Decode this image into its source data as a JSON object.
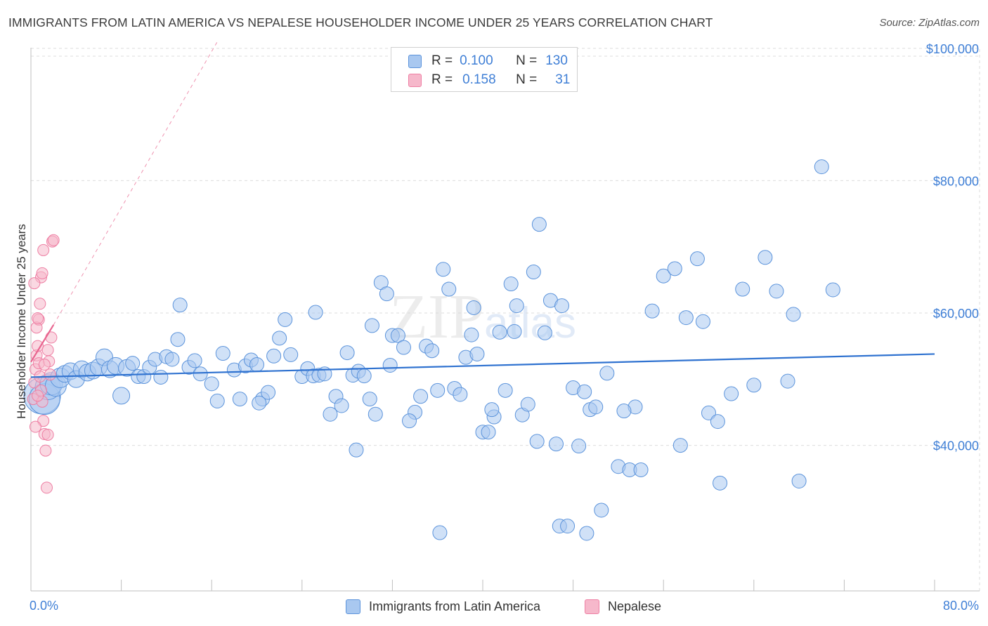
{
  "header": {
    "title": "IMMIGRANTS FROM LATIN AMERICA VS NEPALESE HOUSEHOLDER INCOME UNDER 25 YEARS CORRELATION CHART",
    "source": "Source: ZipAtlas.com"
  },
  "watermark": {
    "zip": "ZIP",
    "atlas": "atlas"
  },
  "legend": {
    "rows": [
      {
        "r_label": "R =",
        "r_value": "0.100",
        "n_label": "N =",
        "n_value": "130",
        "color": "#a9c8f0"
      },
      {
        "r_label": "R =",
        "r_value": "0.158",
        "n_label": "N =",
        "n_value": "31",
        "color": "#f6b8cb"
      }
    ]
  },
  "bottom_legend": {
    "series1": "Immigrants from Latin America",
    "series2": "Nepalese"
  },
  "chart_data": {
    "type": "scatter",
    "title": "IMMIGRANTS FROM LATIN AMERICA VS NEPALESE HOUSEHOLDER INCOME UNDER 25 YEARS CORRELATION CHART",
    "xlabel": "",
    "ylabel": "Householder Income Under 25 years",
    "xlim": [
      0,
      80
    ],
    "ylim": [
      18000,
      102000
    ],
    "x_tick_labels": [
      "0.0%",
      "80.0%"
    ],
    "y_ticks": [
      40000,
      60000,
      80000,
      100000
    ],
    "y_tick_labels": [
      "$40,000",
      "$60,000",
      "$80,000",
      "$100,000"
    ],
    "grid": true,
    "legend_position": "top-center",
    "colors": {
      "blue": "#5b93db",
      "blue_fill": "#a9c8f0",
      "pink": "#ee7ea3",
      "pink_fill": "#f6b8cb",
      "trend_blue": "#2f72d0",
      "trend_pink": "#e8658f"
    },
    "series": [
      {
        "name": "Immigrants from Latin America",
        "r": 0.1,
        "n": 130,
        "trend": {
          "x": [
            0,
            80
          ],
          "y": [
            50300,
            53800
          ]
        },
        "points": [
          [
            1.0,
            47500
          ],
          [
            1.2,
            47000
          ],
          [
            1.5,
            48800
          ],
          [
            1.8,
            49300
          ],
          [
            2.2,
            49000
          ],
          [
            2.6,
            50200
          ],
          [
            3.0,
            50800
          ],
          [
            3.5,
            51200
          ],
          [
            4.0,
            50000
          ],
          [
            4.5,
            51500
          ],
          [
            5.0,
            51000
          ],
          [
            5.5,
            51300
          ],
          [
            6.0,
            51800
          ],
          [
            6.5,
            53300
          ],
          [
            7.0,
            51500
          ],
          [
            7.5,
            52000
          ],
          [
            8.0,
            47500
          ],
          [
            8.5,
            51700
          ],
          [
            9.0,
            52400
          ],
          [
            9.5,
            50400
          ],
          [
            10.0,
            50400
          ],
          [
            10.5,
            51800
          ],
          [
            11.0,
            53000
          ],
          [
            11.5,
            50300
          ],
          [
            12.0,
            53400
          ],
          [
            12.5,
            53000
          ],
          [
            13.0,
            56000
          ],
          [
            13.2,
            61200
          ],
          [
            14.0,
            51800
          ],
          [
            14.5,
            52800
          ],
          [
            15.0,
            50800
          ],
          [
            16.0,
            49300
          ],
          [
            16.5,
            46700
          ],
          [
            17.0,
            53900
          ],
          [
            18.0,
            51400
          ],
          [
            18.5,
            47000
          ],
          [
            19.0,
            52000
          ],
          [
            19.5,
            52900
          ],
          [
            20.0,
            52200
          ],
          [
            20.5,
            47000
          ],
          [
            21.0,
            48000
          ],
          [
            21.5,
            53500
          ],
          [
            22.0,
            56200
          ],
          [
            22.5,
            59000
          ],
          [
            23.0,
            53700
          ],
          [
            24.0,
            50400
          ],
          [
            24.5,
            51600
          ],
          [
            25.0,
            50500
          ],
          [
            25.5,
            50600
          ],
          [
            26.0,
            50800
          ],
          [
            26.5,
            44700
          ],
          [
            27.0,
            47400
          ],
          [
            27.5,
            46000
          ],
          [
            28.0,
            54000
          ],
          [
            28.5,
            50600
          ],
          [
            29.0,
            51200
          ],
          [
            29.5,
            50500
          ],
          [
            30.0,
            47000
          ],
          [
            30.5,
            44700
          ],
          [
            31.0,
            64600
          ],
          [
            31.5,
            62900
          ],
          [
            32.0,
            56600
          ],
          [
            32.5,
            56600
          ],
          [
            33.0,
            54800
          ],
          [
            34.0,
            45000
          ],
          [
            34.5,
            47400
          ],
          [
            35.0,
            55000
          ],
          [
            35.5,
            54300
          ],
          [
            36.0,
            48300
          ],
          [
            36.5,
            66600
          ],
          [
            37.0,
            63600
          ],
          [
            37.5,
            48600
          ],
          [
            38.5,
            53300
          ],
          [
            39.0,
            56700
          ],
          [
            39.5,
            53800
          ],
          [
            40.0,
            42000
          ],
          [
            40.5,
            42000
          ],
          [
            41.0,
            44300
          ],
          [
            41.5,
            57100
          ],
          [
            42.0,
            48300
          ],
          [
            42.5,
            64400
          ],
          [
            43.0,
            61100
          ],
          [
            43.5,
            44600
          ],
          [
            44.0,
            46200
          ],
          [
            44.5,
            66200
          ],
          [
            45.0,
            73400
          ],
          [
            45.5,
            57000
          ],
          [
            46.0,
            61900
          ],
          [
            46.5,
            40200
          ],
          [
            47.0,
            61100
          ],
          [
            48.0,
            48700
          ],
          [
            48.5,
            39900
          ],
          [
            49.0,
            48100
          ],
          [
            49.5,
            45400
          ],
          [
            50.0,
            45800
          ],
          [
            50.5,
            30200
          ],
          [
            51.0,
            50900
          ],
          [
            52.0,
            36800
          ],
          [
            53.0,
            36300
          ],
          [
            53.5,
            45800
          ],
          [
            54.0,
            36300
          ],
          [
            55.0,
            60300
          ],
          [
            56.0,
            65600
          ],
          [
            57.0,
            66700
          ],
          [
            58.0,
            59300
          ],
          [
            59.0,
            68200
          ],
          [
            59.5,
            58700
          ],
          [
            60.0,
            44900
          ],
          [
            61.0,
            34300
          ],
          [
            62.0,
            47800
          ],
          [
            63.0,
            63600
          ],
          [
            64.0,
            49100
          ],
          [
            65.0,
            68400
          ],
          [
            66.0,
            63300
          ],
          [
            67.0,
            49700
          ],
          [
            67.5,
            59800
          ],
          [
            68.0,
            34600
          ],
          [
            70.0,
            82100
          ],
          [
            71.0,
            63500
          ],
          [
            38.0,
            47700
          ],
          [
            33.5,
            43700
          ],
          [
            28.8,
            39300
          ],
          [
            36.2,
            26800
          ],
          [
            40.8,
            45400
          ],
          [
            42.8,
            57200
          ],
          [
            46.8,
            27800
          ],
          [
            57.5,
            40000
          ],
          [
            52.5,
            45200
          ],
          [
            60.8,
            43600
          ],
          [
            44.8,
            40600
          ],
          [
            39.2,
            60800
          ],
          [
            31.8,
            52100
          ],
          [
            30.2,
            58100
          ],
          [
            25.2,
            60100
          ],
          [
            20.2,
            46400
          ],
          [
            47.5,
            27800
          ],
          [
            49.2,
            26700
          ]
        ]
      },
      {
        "name": "Nepalese",
        "r": 0.158,
        "n": 31,
        "trend": {
          "x": [
            0,
            2.0
          ],
          "y": [
            52600,
            58200
          ]
        },
        "trend_dashed": {
          "x": [
            2.0,
            16.5
          ],
          "y": [
            58200,
            101000
          ]
        },
        "points": [
          [
            0.2,
            47000
          ],
          [
            0.3,
            49500
          ],
          [
            0.4,
            51500
          ],
          [
            0.5,
            53600
          ],
          [
            0.6,
            55000
          ],
          [
            0.7,
            59000
          ],
          [
            0.8,
            61400
          ],
          [
            0.9,
            65400
          ],
          [
            1.0,
            66000
          ],
          [
            1.1,
            69500
          ],
          [
            0.5,
            57800
          ],
          [
            0.6,
            59200
          ],
          [
            0.7,
            52400
          ],
          [
            0.8,
            50400
          ],
          [
            0.9,
            48300
          ],
          [
            1.0,
            46600
          ],
          [
            1.1,
            43700
          ],
          [
            1.2,
            41700
          ],
          [
            1.3,
            39200
          ],
          [
            1.4,
            33600
          ],
          [
            1.5,
            54400
          ],
          [
            1.6,
            52700
          ],
          [
            1.7,
            50700
          ],
          [
            1.8,
            56300
          ],
          [
            1.9,
            70800
          ],
          [
            2.0,
            71000
          ],
          [
            0.4,
            42800
          ],
          [
            0.3,
            64500
          ],
          [
            0.6,
            47500
          ],
          [
            1.2,
            52200
          ],
          [
            1.5,
            41600
          ]
        ]
      }
    ]
  },
  "axes": {
    "y_title": "Householder Income Under 25 years",
    "x_left": "0.0%",
    "x_right": "80.0%"
  }
}
